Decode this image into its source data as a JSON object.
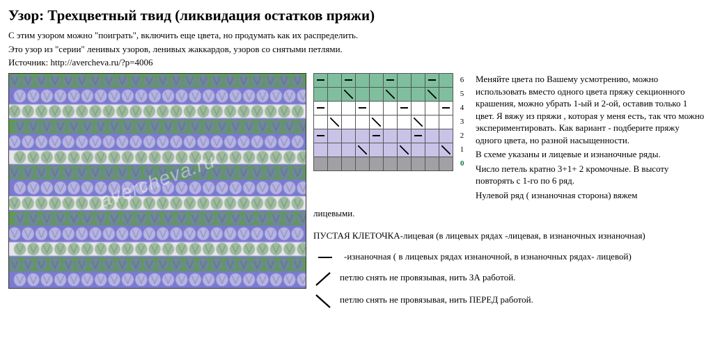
{
  "title": "Узор: Трехцветный твид (ликвидация остатков пряжи)",
  "intro": [
    "С этим узором можно \"поиграть\", включить еще цвета, но продумать как их распределить.",
    "Это узор из \"серии\" ленивых узоров, ленивых жаккардов, узоров со снятыми петлями.",
    "Источник: http://avercheva.ru/?p=4006"
  ],
  "watermark": "avercheva.ru",
  "photo": {
    "colors": {
      "purple": "#7b7ad0",
      "green": "#5f9b55",
      "white": "#e8e4ee",
      "shadow": "#4a4a8a"
    },
    "rows": 14,
    "cols": 22
  },
  "chart": {
    "colors": {
      "green": "#7fbf9e",
      "white": "#ffffff",
      "lilac": "#c9c3e8",
      "base": "#a0a0a5"
    },
    "cell_size": 20,
    "row_labels": [
      "6",
      "5",
      "4",
      "3",
      "2",
      "1",
      "0"
    ],
    "bottom_label": "0",
    "grid": [
      {
        "color": "green",
        "cells": [
          "dash",
          "",
          "dash",
          "",
          "",
          "dash",
          "",
          "",
          "dash",
          ""
        ],
        "label": "6"
      },
      {
        "color": "green",
        "cells": [
          "",
          "",
          "diag",
          "",
          "",
          "diag",
          "",
          "",
          "diag",
          ""
        ],
        "label": "5"
      },
      {
        "color": "white",
        "cells": [
          "dash",
          "",
          "",
          "dash",
          "",
          "",
          "dash",
          "",
          "",
          "dash"
        ],
        "label": "4"
      },
      {
        "color": "white",
        "cells": [
          "",
          "diag",
          "",
          "",
          "diag",
          "",
          "",
          "diag",
          "",
          ""
        ],
        "label": "3"
      },
      {
        "color": "lilac",
        "cells": [
          "dash",
          "",
          "",
          "",
          "dash",
          "",
          "",
          "dash",
          "",
          ""
        ],
        "label": "2"
      },
      {
        "color": "lilac",
        "cells": [
          "",
          "",
          "",
          "diag",
          "",
          "",
          "diag",
          "",
          "",
          "diag"
        ],
        "label": "1"
      },
      {
        "color": "base",
        "cells": [
          "",
          "",
          "",
          "",
          "",
          "",
          "",
          "",
          "",
          ""
        ],
        "label": "0"
      }
    ]
  },
  "desc": [
    "Меняйте цвета по Вашему усмотрению, можно использовать вместо одного цвета пряжу секционного крашения, можно убрать 1-ый и 2-ой, оставив только 1 цвет. Я вяжу из пряжи , которая у меня есть, так что можно экспериментировать. Как вариант - подберите пряжу одного цвета, но разной насыщенности.",
    "В схеме указаны и лицевые и изнаночные ряды.",
    "Число петель кратно 3+1+ 2 кромочные. В высоту повторять с 1-го по 6 ряд.",
    "Нулевой ряд ( изнаночная сторона) вяжем"
  ],
  "desc_below": "лицевыми.",
  "legend_intro": "ПУСТАЯ КЛЕТОЧКА-лицевая (в лицевых рядах -лицевая, в изнаночных изнаночная)",
  "legend": [
    {
      "symbol": "dash",
      "text": "-изнаночная ( в лицевых рядах изнаночной, в изнаночных рядах- лицевой)"
    },
    {
      "symbol": "diag",
      "text": "петлю снять не провязывая, нить ЗА работой."
    },
    {
      "symbol": "diag2",
      "text": "петлю снять не провязывая, нить ПЕРЕД работой."
    }
  ]
}
